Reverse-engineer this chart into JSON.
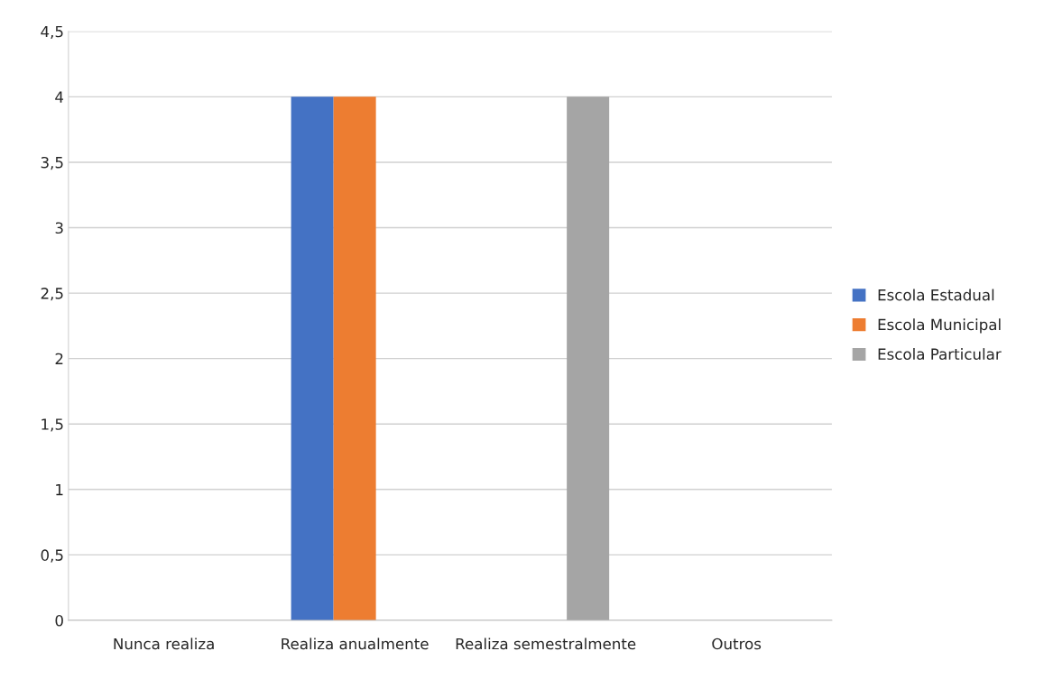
{
  "chart_data": {
    "type": "bar",
    "categories": [
      "Nunca realiza",
      "Realiza anualmente",
      "Realiza semestralmente",
      "Outros"
    ],
    "series": [
      {
        "name": "Escola Estadual",
        "color": "#4472c4",
        "values": [
          0,
          4,
          0,
          0
        ]
      },
      {
        "name": "Escola Municipal",
        "color": "#ed7d31",
        "values": [
          0,
          4,
          0,
          0
        ]
      },
      {
        "name": "Escola Particular",
        "color": "#a5a5a5",
        "values": [
          0,
          0,
          4,
          0
        ]
      }
    ],
    "ylim": [
      0,
      4.5
    ],
    "yticks": [
      0,
      {
        "value": 0.5,
        "label": "0,5"
      },
      1,
      {
        "value": 1.5,
        "label": "1,5"
      },
      2,
      {
        "value": 2.5,
        "label": "2,5"
      },
      3,
      {
        "value": 3.5,
        "label": "3,5"
      },
      4,
      {
        "value": 4.5,
        "label": "4,5"
      }
    ],
    "grid": "y",
    "legend": "right"
  }
}
